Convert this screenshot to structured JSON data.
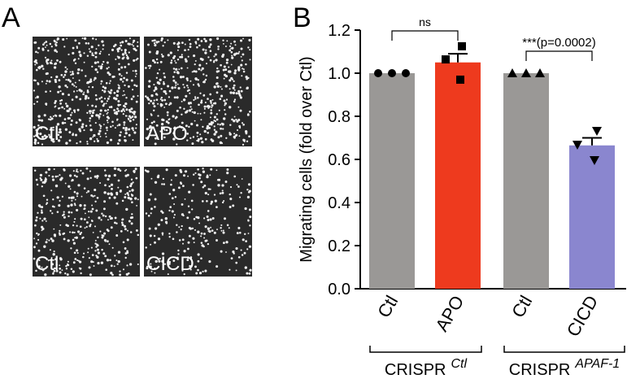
{
  "panel_labels": [
    "A",
    "B"
  ],
  "panel_a": {
    "images": [
      "Ctl",
      "APO",
      "Ctl",
      "CICD"
    ]
  },
  "chart_data": {
    "type": "bar",
    "ylabel": "Migrating cells  (fold over Ctl)",
    "categories": [
      "Ctl",
      "APO",
      "Ctl",
      "CICD"
    ],
    "values": [
      1.0,
      1.05,
      1.0,
      0.665
    ],
    "errors": [
      null,
      0.04,
      null,
      0.035
    ],
    "colors": [
      "#9a9896",
      "#ee3a1e",
      "#9a9896",
      "#8a86cf"
    ],
    "points": [
      [
        1.0,
        1.0,
        1.0
      ],
      [
        1.125,
        1.064,
        0.97
      ],
      [
        1.0,
        1.0,
        1.0
      ],
      [
        0.732,
        0.668,
        0.596
      ]
    ],
    "markers": [
      "circle",
      "square",
      "triangle",
      "triangle-down"
    ],
    "ylim": [
      0,
      1.2
    ],
    "yticks": [
      {
        "value": 0,
        "label": "0.0"
      },
      0.2,
      0.4,
      0.6,
      0.8,
      {
        "value": 1,
        "label": "1.0"
      },
      1.2
    ],
    "annotations": [
      "ns",
      "***(p=0.0002)"
    ],
    "groups": [
      {
        "name": "CRISPR",
        "superscript": "Ctl"
      },
      {
        "name": "CRISPR",
        "superscript": "APAF-1"
      }
    ]
  }
}
